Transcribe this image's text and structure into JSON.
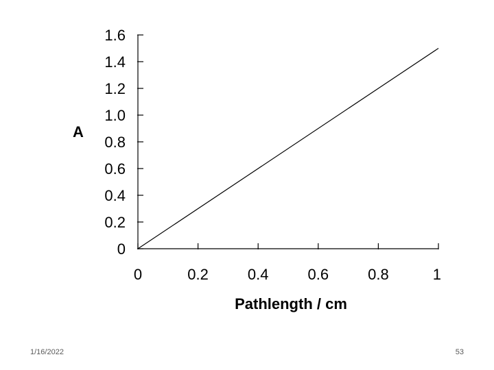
{
  "chart_data": {
    "type": "line",
    "xlabel": "Pathlength / cm",
    "ylabel": "A",
    "xlim": [
      0,
      1
    ],
    "ylim": [
      0,
      1.6
    ],
    "x_ticks": [
      "0",
      "0.2",
      "0.4",
      "0.6",
      "0.8",
      "1"
    ],
    "y_ticks": [
      "0",
      "0.2",
      "0.4",
      "0.6",
      "0.8",
      "1.0",
      "1.2",
      "1.4",
      "1.6"
    ],
    "grid": false,
    "series": [
      {
        "x": [
          0,
          1
        ],
        "y": [
          0,
          1.5
        ]
      }
    ]
  },
  "colors": {
    "line": "#000000",
    "axis": "#000000",
    "footer": "#595959"
  },
  "footer": {
    "date": "1/16/2022",
    "page": "53"
  }
}
